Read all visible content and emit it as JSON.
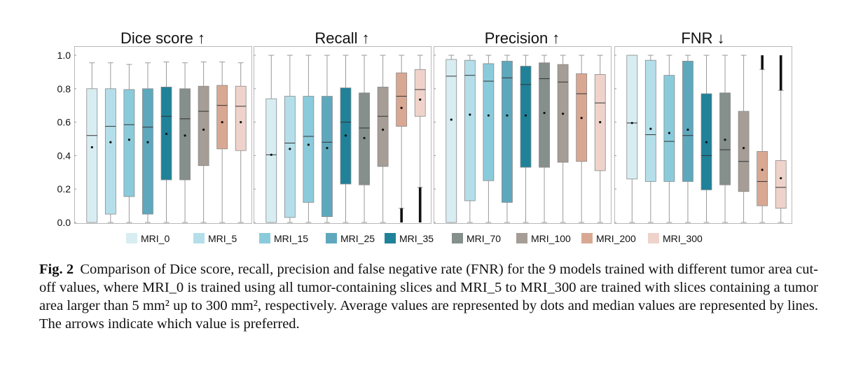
{
  "chart_data": {
    "type": "box",
    "y_range": [
      0,
      1
    ],
    "y_ticks": [
      "0.0",
      "0.2",
      "0.4",
      "0.6",
      "0.8",
      "1.0"
    ],
    "models": [
      "MRI_0",
      "MRI_5",
      "MRI_15",
      "MRI_25",
      "MRI_35",
      "MRI_70",
      "MRI_100",
      "MRI_200",
      "MRI_300"
    ],
    "colors": [
      "#d8edf2",
      "#b4dfea",
      "#8acbdb",
      "#5ea8bd",
      "#1f8299",
      "#858f8b",
      "#a59d96",
      "#d9a893",
      "#efd3cb"
    ],
    "legend_position": "bottom",
    "panels": [
      {
        "title": "Dice score ↑",
        "boxes": [
          {
            "min": 0.0,
            "q1": 0.0,
            "median": 0.52,
            "q3": 0.8,
            "max": 0.955,
            "mean": 0.45
          },
          {
            "min": 0.0,
            "q1": 0.05,
            "median": 0.575,
            "q3": 0.8,
            "max": 0.955,
            "mean": 0.48
          },
          {
            "min": 0.0,
            "q1": 0.155,
            "median": 0.585,
            "q3": 0.795,
            "max": 0.945,
            "mean": 0.495
          },
          {
            "min": 0.0,
            "q1": 0.05,
            "median": 0.57,
            "q3": 0.8,
            "max": 0.955,
            "mean": 0.48
          },
          {
            "min": 0.0,
            "q1": 0.255,
            "median": 0.635,
            "q3": 0.81,
            "max": 0.96,
            "mean": 0.53
          },
          {
            "min": 0.0,
            "q1": 0.255,
            "median": 0.62,
            "q3": 0.8,
            "max": 0.955,
            "mean": 0.52
          },
          {
            "min": 0.0,
            "q1": 0.34,
            "median": 0.665,
            "q3": 0.815,
            "max": 0.96,
            "mean": 0.555
          },
          {
            "min": 0.0,
            "q1": 0.44,
            "median": 0.7,
            "q3": 0.82,
            "max": 0.96,
            "mean": 0.6
          },
          {
            "min": 0.0,
            "q1": 0.43,
            "median": 0.695,
            "q3": 0.815,
            "max": 0.955,
            "mean": 0.6
          }
        ]
      },
      {
        "title": "Recall ↑",
        "boxes": [
          {
            "min": 0.0,
            "q1": 0.0,
            "median": 0.405,
            "q3": 0.74,
            "max": 1.0,
            "mean": 0.405
          },
          {
            "min": 0.0,
            "q1": 0.03,
            "median": 0.475,
            "q3": 0.755,
            "max": 1.0,
            "mean": 0.44
          },
          {
            "min": 0.0,
            "q1": 0.12,
            "median": 0.515,
            "q3": 0.755,
            "max": 1.0,
            "mean": 0.465
          },
          {
            "min": 0.0,
            "q1": 0.035,
            "median": 0.48,
            "q3": 0.755,
            "max": 1.0,
            "mean": 0.445
          },
          {
            "min": 0.0,
            "q1": 0.23,
            "median": 0.6,
            "q3": 0.805,
            "max": 1.0,
            "mean": 0.52
          },
          {
            "min": 0.0,
            "q1": 0.225,
            "median": 0.565,
            "q3": 0.775,
            "max": 1.0,
            "mean": 0.505
          },
          {
            "min": 0.0,
            "q1": 0.335,
            "median": 0.635,
            "q3": 0.81,
            "max": 1.0,
            "mean": 0.555
          },
          {
            "min": 0.085,
            "q1": 0.575,
            "median": 0.755,
            "q3": 0.895,
            "max": 1.0,
            "mean": 0.685,
            "outliers": [
              0.0,
              0.085
            ]
          },
          {
            "min": 0.21,
            "q1": 0.635,
            "median": 0.795,
            "q3": 0.915,
            "max": 1.0,
            "mean": 0.735,
            "outliers": [
              0.0,
              0.21
            ]
          }
        ]
      },
      {
        "title": "Precision ↑",
        "boxes": [
          {
            "min": 0.0,
            "q1": 0.0,
            "median": 0.875,
            "q3": 0.975,
            "max": 1.0,
            "mean": 0.615
          },
          {
            "min": 0.0,
            "q1": 0.13,
            "median": 0.88,
            "q3": 0.97,
            "max": 1.0,
            "mean": 0.645
          },
          {
            "min": 0.0,
            "q1": 0.25,
            "median": 0.845,
            "q3": 0.95,
            "max": 1.0,
            "mean": 0.64
          },
          {
            "min": 0.0,
            "q1": 0.12,
            "median": 0.865,
            "q3": 0.965,
            "max": 1.0,
            "mean": 0.64
          },
          {
            "min": 0.0,
            "q1": 0.33,
            "median": 0.825,
            "q3": 0.935,
            "max": 1.0,
            "mean": 0.64
          },
          {
            "min": 0.0,
            "q1": 0.33,
            "median": 0.86,
            "q3": 0.955,
            "max": 1.0,
            "mean": 0.655
          },
          {
            "min": 0.0,
            "q1": 0.36,
            "median": 0.84,
            "q3": 0.945,
            "max": 1.0,
            "mean": 0.65
          },
          {
            "min": 0.0,
            "q1": 0.365,
            "median": 0.77,
            "q3": 0.89,
            "max": 1.0,
            "mean": 0.625
          },
          {
            "min": 0.0,
            "q1": 0.31,
            "median": 0.715,
            "q3": 0.885,
            "max": 1.0,
            "mean": 0.6
          }
        ]
      },
      {
        "title": "FNR ↓",
        "boxes": [
          {
            "min": 0.0,
            "q1": 0.26,
            "median": 0.595,
            "q3": 1.0,
            "max": 1.0,
            "mean": 0.595
          },
          {
            "min": 0.0,
            "q1": 0.245,
            "median": 0.525,
            "q3": 0.97,
            "max": 1.0,
            "mean": 0.56
          },
          {
            "min": 0.0,
            "q1": 0.245,
            "median": 0.485,
            "q3": 0.88,
            "max": 1.0,
            "mean": 0.535
          },
          {
            "min": 0.0,
            "q1": 0.245,
            "median": 0.52,
            "q3": 0.965,
            "max": 1.0,
            "mean": 0.555
          },
          {
            "min": 0.0,
            "q1": 0.195,
            "median": 0.4,
            "q3": 0.77,
            "max": 1.0,
            "mean": 0.48
          },
          {
            "min": 0.0,
            "q1": 0.225,
            "median": 0.435,
            "q3": 0.775,
            "max": 1.0,
            "mean": 0.495
          },
          {
            "min": 0.0,
            "q1": 0.185,
            "median": 0.365,
            "q3": 0.665,
            "max": 1.0,
            "mean": 0.445
          },
          {
            "min": 0.0,
            "q1": 0.1,
            "median": 0.245,
            "q3": 0.425,
            "max": 0.915,
            "mean": 0.315,
            "outliers": [
              0.915,
              1.0
            ]
          },
          {
            "min": 0.0,
            "q1": 0.085,
            "median": 0.21,
            "q3": 0.37,
            "max": 0.79,
            "mean": 0.265,
            "outliers": [
              0.79,
              1.0
            ]
          }
        ]
      }
    ]
  },
  "caption": {
    "label": "Fig. 2",
    "text": "Comparison of Dice score, recall, precision and false negative rate (FNR) for the 9 models trained with different tumor area cut-off values, where MRI_0 is trained using all tumor-containing slices and MRI_5 to MRI_300 are trained with slices containing a tumor area larger than 5 mm² up to 300 mm², respectively. Average values are represented by dots and median values are represented by lines. The arrows indicate which value is preferred."
  }
}
